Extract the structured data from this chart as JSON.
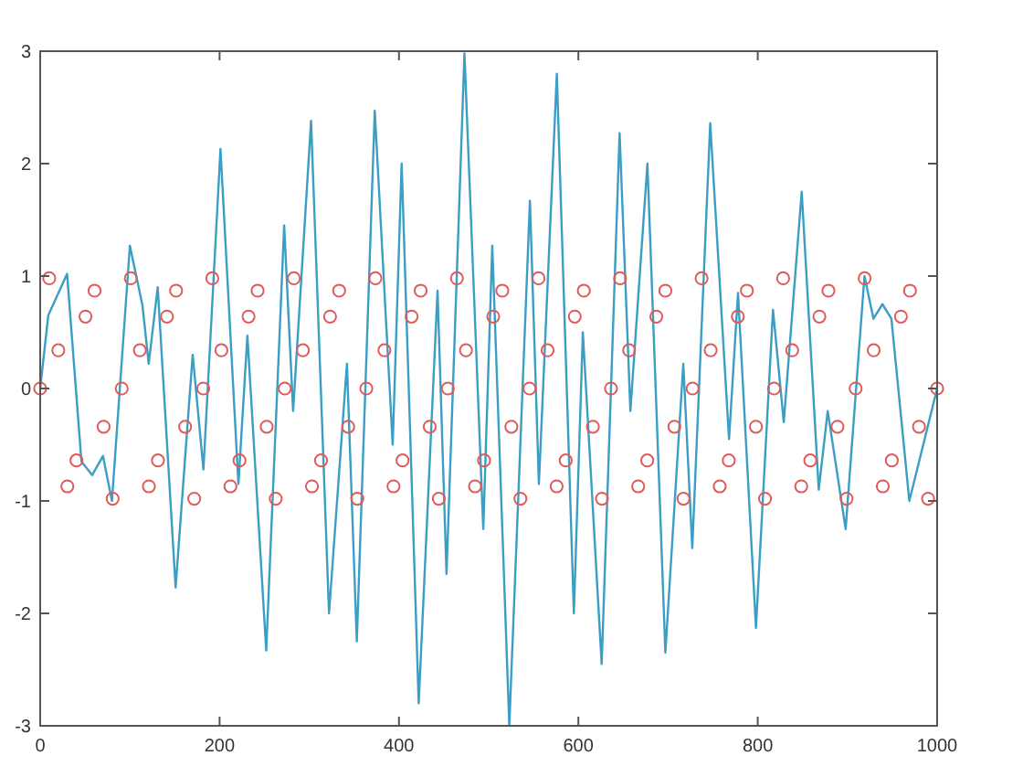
{
  "chart_data": {
    "type": "line",
    "xlim": [
      0,
      1000
    ],
    "ylim": [
      -3,
      3
    ],
    "xticks": [
      0,
      200,
      400,
      600,
      800,
      1000
    ],
    "yticks": [
      -3,
      -2,
      -1,
      0,
      1,
      2,
      3
    ],
    "grid": false,
    "series": [
      {
        "color": "#3b9ec4",
        "marker": "none",
        "x": [
          0,
          9,
          30,
          46,
          58,
          70,
          80,
          100,
          114,
          121,
          131,
          151,
          170,
          182,
          201,
          221,
          231,
          252,
          272,
          282,
          302,
          322,
          342,
          353,
          373,
          393,
          403,
          422,
          443,
          453,
          473,
          494,
          504,
          523,
          546,
          556,
          576,
          595,
          605,
          626,
          646,
          658,
          677,
          697,
          717,
          727,
          747,
          768,
          778,
          798,
          817,
          829,
          849,
          868,
          878,
          898,
          919,
          929,
          939,
          949,
          969,
          1000
        ],
        "values": [
          0,
          0.65,
          1.02,
          -0.65,
          -0.77,
          -0.6,
          -1.0,
          1.27,
          0.74,
          0.22,
          0.9,
          -1.77,
          0.3,
          -0.72,
          2.13,
          -0.85,
          0.47,
          -2.33,
          1.45,
          -0.2,
          2.38,
          -2.0,
          0.22,
          -2.25,
          2.47,
          -0.5,
          2.0,
          -2.8,
          0.87,
          -1.65,
          2.98,
          -1.25,
          1.27,
          -3.0,
          1.67,
          -0.85,
          2.8,
          -2.0,
          0.5,
          -2.45,
          2.27,
          -0.2,
          2.0,
          -2.35,
          0.22,
          -1.42,
          2.36,
          -0.45,
          0.85,
          -2.13,
          0.7,
          -0.3,
          1.75,
          -0.9,
          -0.2,
          -1.25,
          1.0,
          0.62,
          0.75,
          0.62,
          -1.0,
          0
        ]
      },
      {
        "type": "scatter",
        "color": "#e05a5a",
        "marker": "circle",
        "x": [
          0,
          10.1,
          20.2,
          30.3,
          40.4,
          50.5,
          60.6,
          70.7,
          80.8,
          90.9,
          101,
          111.1,
          121.2,
          131.3,
          141.4,
          151.5,
          161.6,
          171.7,
          181.8,
          191.9,
          202,
          212.1,
          222.2,
          232.3,
          242.4,
          252.5,
          262.6,
          272.7,
          282.8,
          292.9,
          303,
          313.1,
          323.2,
          333.3,
          343.4,
          353.5,
          363.6,
          373.7,
          383.8,
          393.9,
          404,
          414.1,
          424.2,
          434.3,
          444.4,
          454.5,
          464.6,
          474.7,
          484.8,
          494.9,
          505.1,
          515.2,
          525.3,
          535.4,
          545.5,
          555.6,
          565.7,
          575.8,
          585.9,
          596,
          606.1,
          616.2,
          626.3,
          636.4,
          646.5,
          656.6,
          666.7,
          676.8,
          686.9,
          697,
          707.1,
          717.2,
          727.3,
          737.4,
          747.5,
          757.6,
          767.7,
          777.8,
          787.9,
          798,
          808.1,
          818.2,
          828.3,
          838.4,
          848.5,
          858.6,
          868.7,
          878.8,
          888.9,
          899,
          909.1,
          919.2,
          929.3,
          939.4,
          949.5,
          959.6,
          969.7,
          979.8,
          989.9,
          1000
        ],
        "values": [
          0,
          0.98,
          0.34,
          -0.87,
          -0.64,
          0.64,
          0.87,
          -0.34,
          -0.98,
          0,
          0.98,
          0.34,
          -0.87,
          -0.64,
          0.64,
          0.87,
          -0.34,
          -0.98,
          0,
          0.98,
          0.34,
          -0.87,
          -0.64,
          0.64,
          0.87,
          -0.34,
          -0.98,
          0,
          0.98,
          0.34,
          -0.87,
          -0.64,
          0.64,
          0.87,
          -0.34,
          -0.98,
          0,
          0.98,
          0.34,
          -0.87,
          -0.64,
          0.64,
          0.87,
          -0.34,
          -0.98,
          0,
          0.98,
          0.34,
          -0.87,
          -0.64,
          0.64,
          0.87,
          -0.34,
          -0.98,
          0,
          0.98,
          0.34,
          -0.87,
          -0.64,
          0.64,
          0.87,
          -0.34,
          -0.98,
          0,
          0.98,
          0.34,
          -0.87,
          -0.64,
          0.64,
          0.87,
          -0.34,
          -0.98,
          0,
          0.98,
          0.34,
          -0.87,
          -0.64,
          0.64,
          0.87,
          -0.34,
          -0.98,
          0,
          0.98,
          0.34,
          -0.87,
          -0.64,
          0.64,
          0.87,
          -0.34,
          -0.98,
          0,
          0.98,
          0.34,
          -0.87,
          -0.64,
          0.64,
          0.87,
          -0.34,
          -0.98,
          0
        ]
      }
    ]
  }
}
